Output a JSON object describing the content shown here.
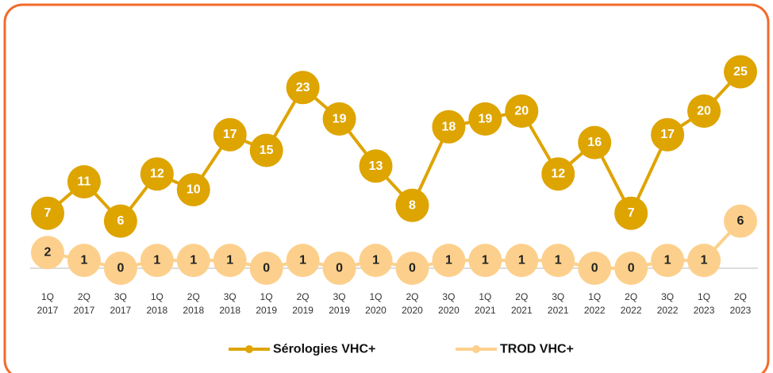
{
  "chart_data": {
    "type": "line",
    "categories": [
      "1Q 2017",
      "2Q 2017",
      "3Q 2017",
      "1Q 2018",
      "2Q 2018",
      "3Q 2018",
      "1Q 2019",
      "2Q 2019",
      "3Q 2019",
      "1Q 2020",
      "2Q 2020",
      "3Q 2020",
      "1Q 2021",
      "2Q 2021",
      "3Q 2021",
      "1Q 2022",
      "2Q 2022",
      "3Q 2022",
      "1Q 2023",
      "2Q 2023"
    ],
    "series": [
      {
        "name": "Sérologies VHC+",
        "color": "#dea400",
        "label_color": "#ffffff",
        "values": [
          7,
          11,
          6,
          12,
          10,
          17,
          15,
          23,
          19,
          13,
          8,
          18,
          19,
          20,
          12,
          16,
          7,
          17,
          20,
          25
        ]
      },
      {
        "name": "TROD VHC+",
        "color": "#fcd08c",
        "label_color": "#222222",
        "values": [
          2,
          1,
          0,
          1,
          1,
          1,
          0,
          1,
          0,
          1,
          0,
          1,
          1,
          1,
          1,
          0,
          0,
          1,
          1,
          6
        ]
      }
    ],
    "legend": "bottom"
  }
}
